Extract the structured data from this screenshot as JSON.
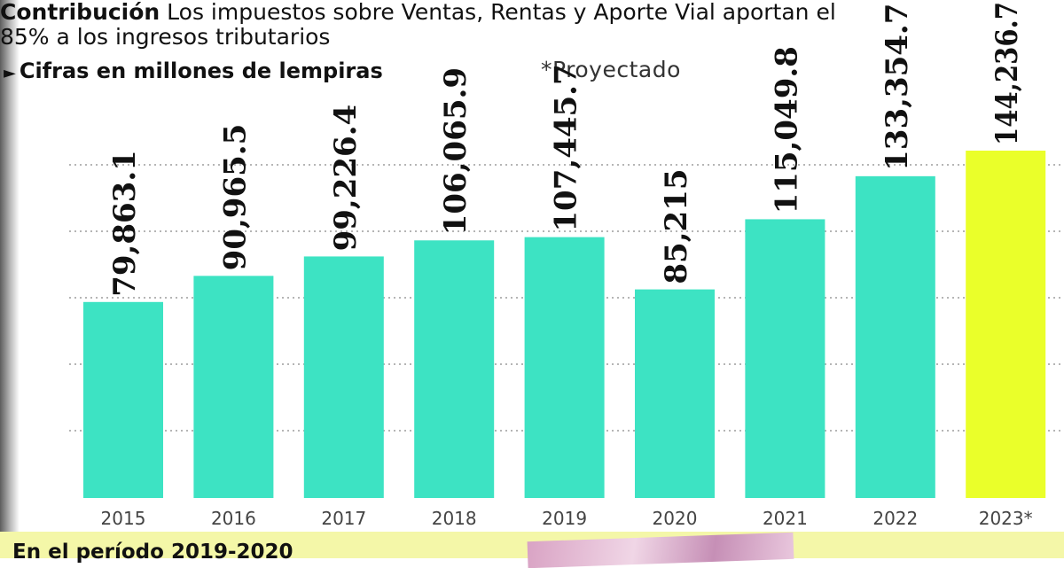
{
  "header": {
    "title_lead": "Contribución",
    "title_rest": " Los impuestos sobre Ventas, Rentas y Aporte Vial aportan el 85% a los ingresos tributarios",
    "subtitle_arrow": "►",
    "subtitle": "Cifras en millones de lempiras",
    "note": "*Proyectado"
  },
  "chart_data": {
    "type": "bar",
    "categories": [
      "2015",
      "2016",
      "2017",
      "2018",
      "2019",
      "2020",
      "2021",
      "2022",
      "2023*"
    ],
    "values": [
      79863.1,
      90965.5,
      99226.4,
      106065.9,
      107445.7,
      85215,
      115049.8,
      133354.7,
      144236.7
    ],
    "value_labels": [
      "79,863.1",
      "90,965.5",
      "99,226.4",
      "106,065.9",
      "107,445.7",
      "85,215",
      "115,049.8",
      "133,354.7",
      "144,236.7"
    ],
    "ylim": [
      -3500,
      148000
    ],
    "grid": true,
    "colors": {
      "bar": "#3de3c3",
      "projected_bar": "#eaff2a",
      "grid": "#b5b5b5",
      "label": "#111111",
      "tick": "#444444"
    },
    "projected_index": 8
  },
  "footer": {
    "teaser": "En el período 2019-2020"
  }
}
